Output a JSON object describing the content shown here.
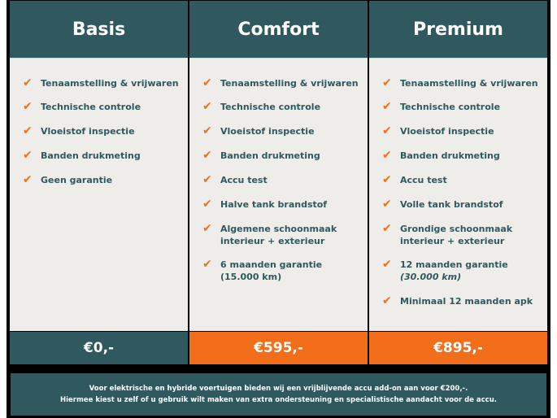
{
  "plans": [
    {
      "name": "Basis",
      "price": "€0,-",
      "features": [
        [
          "Tenaamstelling & vrijwaren"
        ],
        [
          "Technische controle"
        ],
        [
          "Vloeistof inspectie"
        ],
        [
          "Banden drukmeting"
        ],
        [
          "Geen garantie"
        ]
      ]
    },
    {
      "name": "Comfort",
      "price": "€595,-",
      "features": [
        [
          "Tenaamstelling & vrijwaren"
        ],
        [
          "Technische controle"
        ],
        [
          "Vloeistof inspectie"
        ],
        [
          "Banden drukmeting"
        ],
        [
          "Accu test"
        ],
        [
          "Halve tank brandstof"
        ],
        [
          "Algemene schoonmaak",
          "interieur + exterieur"
        ],
        [
          "6 maanden garantie",
          "(15.000 km)"
        ]
      ]
    },
    {
      "name": "Premium",
      "price": "€895,-",
      "features": [
        [
          "Tenaamstelling & vrijwaren"
        ],
        [
          "Technische controle"
        ],
        [
          "Vloeistof inspectie"
        ],
        [
          "Banden drukmeting"
        ],
        [
          "Accu test"
        ],
        [
          "Volle tank brandstof"
        ],
        [
          "Grondige schoonmaak",
          "interieur + exterieur"
        ],
        [
          "12 maanden garantie",
          "(30.000 km)"
        ],
        [
          "Minimaal 12 maanden apk"
        ]
      ]
    }
  ],
  "footer": {
    "line1": "Voor elektrische en hybride voertuigen bieden wij een vrijblijvende accu add-on aan voor €200,-.",
    "line2": "Hiermee kiest u zelf of u gebruik wilt maken van extra ondersteuning en specialistische aandacht voor de accu."
  },
  "colors": {
    "teal": "#30585f",
    "orange": "#f26e1b",
    "check": "#f26e1b"
  }
}
